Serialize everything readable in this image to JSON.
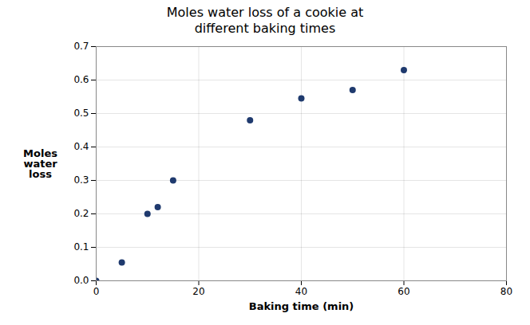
{
  "chart_data": {
    "type": "scatter",
    "title": "Moles water loss of a cookie at\n different baking times",
    "xlabel": "Baking time (min)",
    "ylabel": "Moles\nwater\nloss",
    "x": [
      0,
      5,
      10,
      12,
      15,
      30,
      40,
      50,
      60
    ],
    "y": [
      0.0,
      0.055,
      0.2,
      0.22,
      0.3,
      0.48,
      0.545,
      0.57,
      0.63
    ],
    "color": "#1F3A6E",
    "xlim": [
      0,
      80
    ],
    "ylim": [
      0,
      0.7
    ],
    "xticks": [
      0,
      20,
      40,
      60,
      80
    ],
    "yticks": [
      {
        "value": 0,
        "label": "0.0"
      },
      0.1,
      0.2,
      0.3,
      0.4,
      0.5,
      0.6,
      0.7
    ],
    "grid": true
  }
}
